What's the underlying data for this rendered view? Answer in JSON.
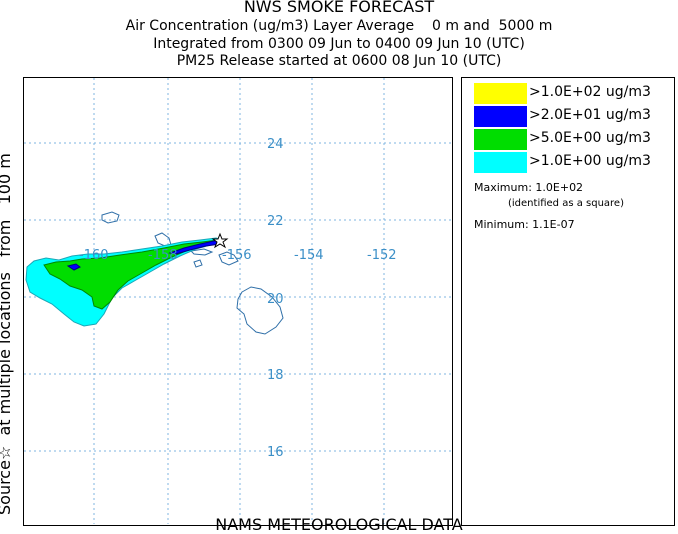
{
  "header": {
    "title": "NWS SMOKE FORECAST",
    "line1": "Air Concentration (ug/m3) Layer Average    0 m and  5000 m",
    "line2": "Integrated from 0300 09 Jun to 0400 09 Jun 10 (UTC)",
    "line3": "PM25 Release started at 0600 08 Jun 10 (UTC)"
  },
  "side_label": "Source☆  at multiple locations   from   100 m",
  "bottom_label": "NAMS METEOROLOGICAL DATA",
  "map": {
    "lon_labels": [
      "-160",
      "-158",
      "-156",
      "-154",
      "-152"
    ],
    "lat_labels": [
      "24",
      "22",
      "20",
      "18",
      "16"
    ],
    "grid_color": "#7fb4e0",
    "label_color": "#3b8fc7",
    "coast_color": "#2f6fa8"
  },
  "legend": {
    "entries": [
      {
        "label": ">1.0E+02 ug/m3",
        "color": "#ffff00"
      },
      {
        "label": ">2.0E+01 ug/m3",
        "color": "#0000ff"
      },
      {
        "label": ">5.0E+00 ug/m3",
        "color": "#00dd00"
      },
      {
        "label": ">1.0E+00 ug/m3",
        "color": "#00ffff"
      }
    ],
    "maximum": "Maximum: 1.0E+02",
    "maximum_note": "(identified as a square)",
    "minimum": "Minimum: 1.1E-07"
  }
}
